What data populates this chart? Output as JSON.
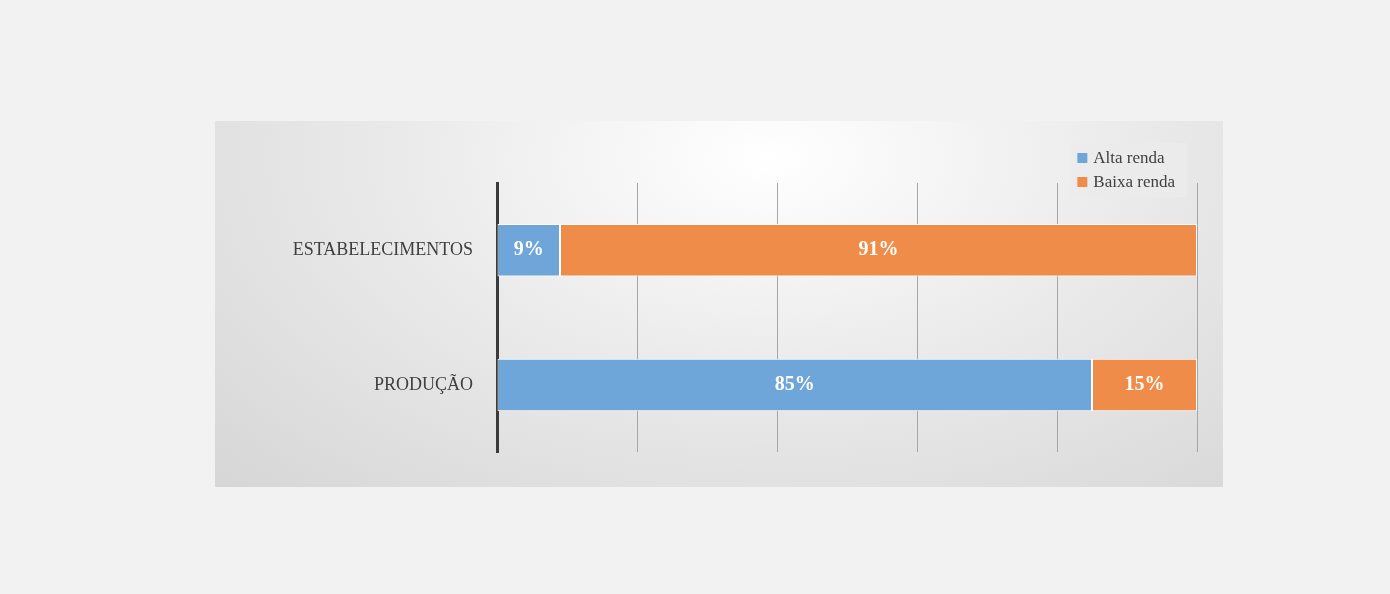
{
  "chart_data": {
    "type": "bar",
    "orientation": "horizontal",
    "stacked": true,
    "categories": [
      "ESTABELECIMENTOS",
      "PRODUÇÃO"
    ],
    "series": [
      {
        "name": "Alta renda",
        "color": "#6fa6da",
        "values": [
          9,
          85
        ],
        "value_labels": [
          "9%",
          "85%"
        ]
      },
      {
        "name": "Baixa renda",
        "color": "#ef8c4a",
        "values": [
          91,
          15
        ],
        "value_labels": [
          "91%",
          "15%"
        ]
      }
    ],
    "xlim": [
      0,
      100
    ],
    "xticks": [
      {
        "value": 0,
        "label": null
      },
      {
        "value": 20,
        "label": null
      },
      {
        "value": 40,
        "label": null
      },
      {
        "value": 60,
        "label": null
      },
      {
        "value": 80,
        "label": null
      },
      {
        "value": 100,
        "label": null
      }
    ],
    "tick_labels": "y",
    "grid": "x",
    "legend": "top right"
  }
}
